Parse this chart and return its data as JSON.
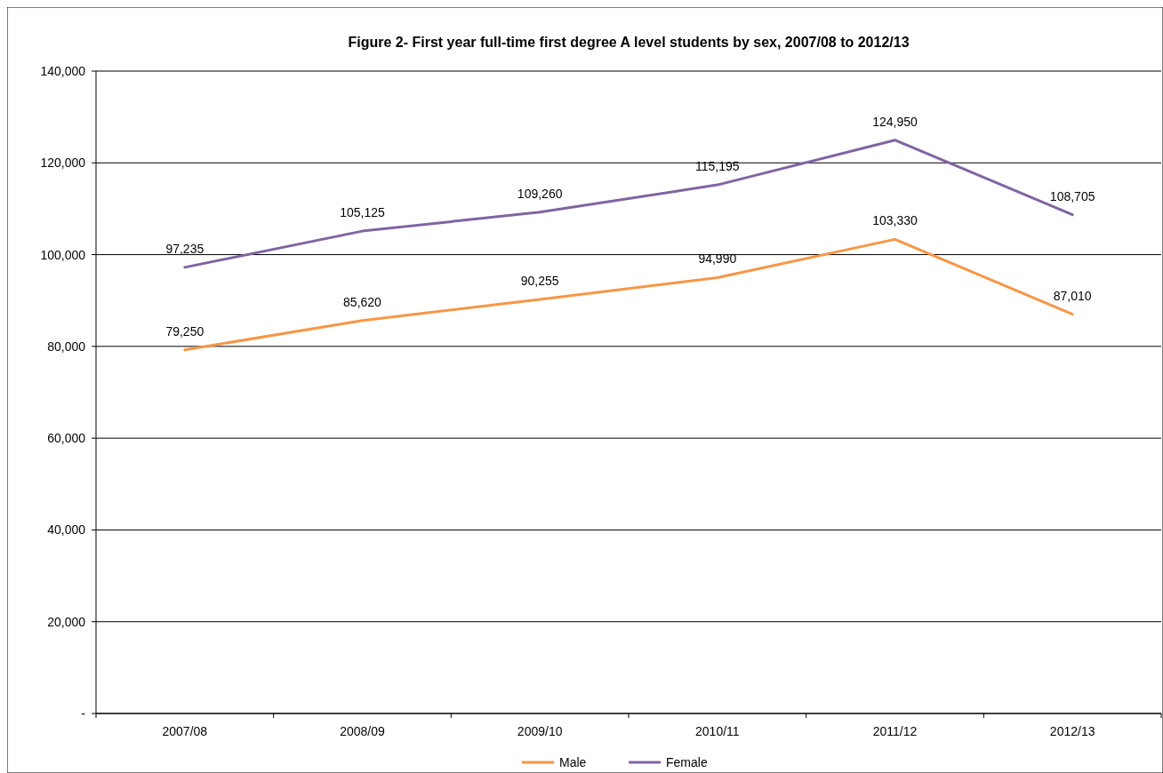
{
  "chart_data": {
    "type": "line",
    "title": "Figure 2- First year full-time first degree A level students by sex, 2007/08 to 2012/13",
    "categories": [
      "2007/08",
      "2008/09",
      "2009/10",
      "2010/11",
      "2011/12",
      "2012/13"
    ],
    "series": [
      {
        "name": "Male",
        "color": "#f79646",
        "values": [
          79250,
          85620,
          90255,
          94990,
          103330,
          87010
        ],
        "value_labels": [
          "79,250",
          "85,620",
          "90,255",
          "94,990",
          "103,330",
          "87,010"
        ]
      },
      {
        "name": "Female",
        "color": "#8064a2",
        "values": [
          97235,
          105125,
          109260,
          115195,
          124950,
          108705
        ],
        "value_labels": [
          "97,235",
          "105,125",
          "109,260",
          "115,195",
          "124,950",
          "108,705"
        ]
      }
    ],
    "ylim": [
      0,
      140000
    ],
    "yticks": [
      {
        "value": 0,
        "label": "-"
      },
      {
        "value": 20000,
        "label": "20,000"
      },
      {
        "value": 40000,
        "label": "40,000"
      },
      {
        "value": 60000,
        "label": "60,000"
      },
      {
        "value": 80000,
        "label": "80,000"
      },
      {
        "value": 100000,
        "label": "100,000"
      },
      {
        "value": 120000,
        "label": "120,000"
      },
      {
        "value": 140000,
        "label": "140,000"
      }
    ],
    "grid": "y",
    "legend": "bottom",
    "marker": "none",
    "line_style": "solid"
  }
}
